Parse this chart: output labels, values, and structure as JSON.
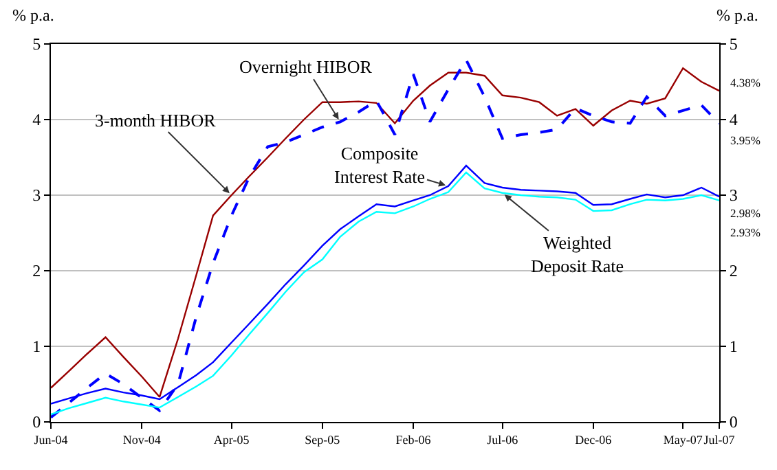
{
  "chart_data": {
    "type": "line",
    "x": [
      "2004-06",
      "2004-07",
      "2004-08",
      "2004-09",
      "2004-10",
      "2004-11",
      "2004-12",
      "2005-01",
      "2005-02",
      "2005-03",
      "2005-04",
      "2005-05",
      "2005-06",
      "2005-07",
      "2005-08",
      "2005-09",
      "2005-10",
      "2005-11",
      "2005-12",
      "2006-01",
      "2006-02",
      "2006-03",
      "2006-04",
      "2006-05",
      "2006-06",
      "2006-07",
      "2006-08",
      "2006-09",
      "2006-10",
      "2006-11",
      "2006-12",
      "2007-01",
      "2007-02",
      "2007-03",
      "2007-04",
      "2007-05",
      "2007-06",
      "2007-07"
    ],
    "series": [
      {
        "color": "#990000",
        "line_style": "solid",
        "values": [
          0.45,
          0.67,
          0.9,
          1.12,
          0.86,
          0.6,
          0.33,
          1.1,
          1.95,
          2.73,
          3.0,
          3.25,
          3.5,
          3.75,
          4.0,
          4.23,
          4.23,
          4.24,
          4.22,
          3.95,
          4.25,
          4.45,
          4.62,
          4.62,
          4.58,
          4.32,
          4.29,
          4.23,
          4.05,
          4.14,
          3.92,
          4.12,
          4.25,
          4.21,
          4.28,
          4.68,
          4.5,
          4.38
        ],
        "value_labels": [
          null,
          null,
          null,
          null,
          null,
          null,
          null,
          null,
          null,
          null,
          null,
          null,
          null,
          null,
          null,
          null,
          null,
          null,
          null,
          null,
          null,
          null,
          null,
          null,
          null,
          null,
          null,
          null,
          null,
          null,
          null,
          null,
          null,
          null,
          null,
          null,
          null,
          "4.38%"
        ]
      },
      {
        "color": "#0000ff",
        "line_style": "dashed",
        "values": [
          0.06,
          0.25,
          0.45,
          0.64,
          0.5,
          0.32,
          0.15,
          0.5,
          1.4,
          2.1,
          2.73,
          3.24,
          3.64,
          3.7,
          3.8,
          3.9,
          3.97,
          4.1,
          4.25,
          3.8,
          4.6,
          3.97,
          4.4,
          4.79,
          4.3,
          3.75,
          3.8,
          3.83,
          3.87,
          4.15,
          4.05,
          3.97,
          3.95,
          4.3,
          4.05,
          4.12,
          4.19,
          3.95
        ],
        "value_labels": [
          null,
          null,
          null,
          null,
          null,
          null,
          null,
          null,
          null,
          null,
          null,
          null,
          null,
          null,
          null,
          null,
          null,
          null,
          null,
          null,
          null,
          null,
          null,
          null,
          null,
          null,
          null,
          null,
          null,
          null,
          null,
          null,
          null,
          null,
          null,
          null,
          null,
          "3.95%"
        ]
      },
      {
        "color": "#0000ff",
        "line_style": "solid",
        "values": [
          0.24,
          0.31,
          0.38,
          0.44,
          0.39,
          0.35,
          0.3,
          0.46,
          0.62,
          0.79,
          1.05,
          1.3,
          1.56,
          1.82,
          2.07,
          2.33,
          2.55,
          2.72,
          2.88,
          2.85,
          2.93,
          3.0,
          3.12,
          3.39,
          3.16,
          3.1,
          3.07,
          3.06,
          3.05,
          3.03,
          2.87,
          2.88,
          2.95,
          3.01,
          2.97,
          3.0,
          3.1,
          2.98
        ],
        "value_labels": [
          null,
          null,
          null,
          null,
          null,
          null,
          null,
          null,
          null,
          null,
          null,
          null,
          null,
          null,
          null,
          null,
          null,
          null,
          null,
          null,
          null,
          null,
          null,
          null,
          null,
          null,
          null,
          null,
          null,
          null,
          null,
          null,
          null,
          null,
          null,
          null,
          null,
          "2.98%"
        ]
      },
      {
        "color": "#00ffff",
        "line_style": "solid",
        "values": [
          0.1,
          0.18,
          0.25,
          0.32,
          0.27,
          0.23,
          0.19,
          0.33,
          0.47,
          0.61,
          0.88,
          1.16,
          1.44,
          1.72,
          1.98,
          2.15,
          2.45,
          2.65,
          2.78,
          2.76,
          2.85,
          2.95,
          3.04,
          3.3,
          3.09,
          3.03,
          3.0,
          2.98,
          2.97,
          2.94,
          2.79,
          2.8,
          2.88,
          2.94,
          2.93,
          2.95,
          3.0,
          2.93
        ],
        "value_labels": [
          null,
          null,
          null,
          null,
          null,
          null,
          null,
          null,
          null,
          null,
          null,
          null,
          null,
          null,
          null,
          null,
          null,
          null,
          null,
          null,
          null,
          null,
          null,
          null,
          null,
          null,
          null,
          null,
          null,
          null,
          null,
          null,
          null,
          null,
          null,
          null,
          null,
          "2.93%"
        ]
      }
    ],
    "ylabel": "% p.a.",
    "y2label": "% p.a.",
    "xlim": [
      "2004-06",
      "2007-07"
    ],
    "xticks": [
      {
        "value": "2004-06",
        "label": "Jun-04"
      },
      {
        "value": "2004-11",
        "label": "Nov-04"
      },
      {
        "value": "2005-04",
        "label": "Apr-05"
      },
      {
        "value": "2005-09",
        "label": "Sep-05"
      },
      {
        "value": "2006-02",
        "label": "Feb-06"
      },
      {
        "value": "2006-07",
        "label": "Jul-06"
      },
      {
        "value": "2006-12",
        "label": "Dec-06"
      },
      {
        "value": "2007-05",
        "label": "May-07"
      },
      {
        "value": "2007-07",
        "label": "Jul-07"
      }
    ],
    "ylim": [
      0,
      5
    ],
    "yticks": [
      0,
      1,
      2,
      3,
      4,
      5
    ],
    "y2lim": [
      0,
      5
    ],
    "y2ticks": [
      0,
      1,
      2,
      3,
      4,
      5
    ],
    "grid": "y",
    "annotations": [
      {
        "text": "Overnight HIBOR",
        "x": "2005-10",
        "y": 3.97
      },
      {
        "text": "3-month HIBOR",
        "x": "2005-04",
        "y": 3.0
      },
      {
        "text": "Composite\nInterest Rate",
        "x": "2006-04",
        "y": 3.12
      },
      {
        "text": "Weighted\nDeposit Rate",
        "x": "2006-07",
        "y": 3.03
      }
    ]
  }
}
